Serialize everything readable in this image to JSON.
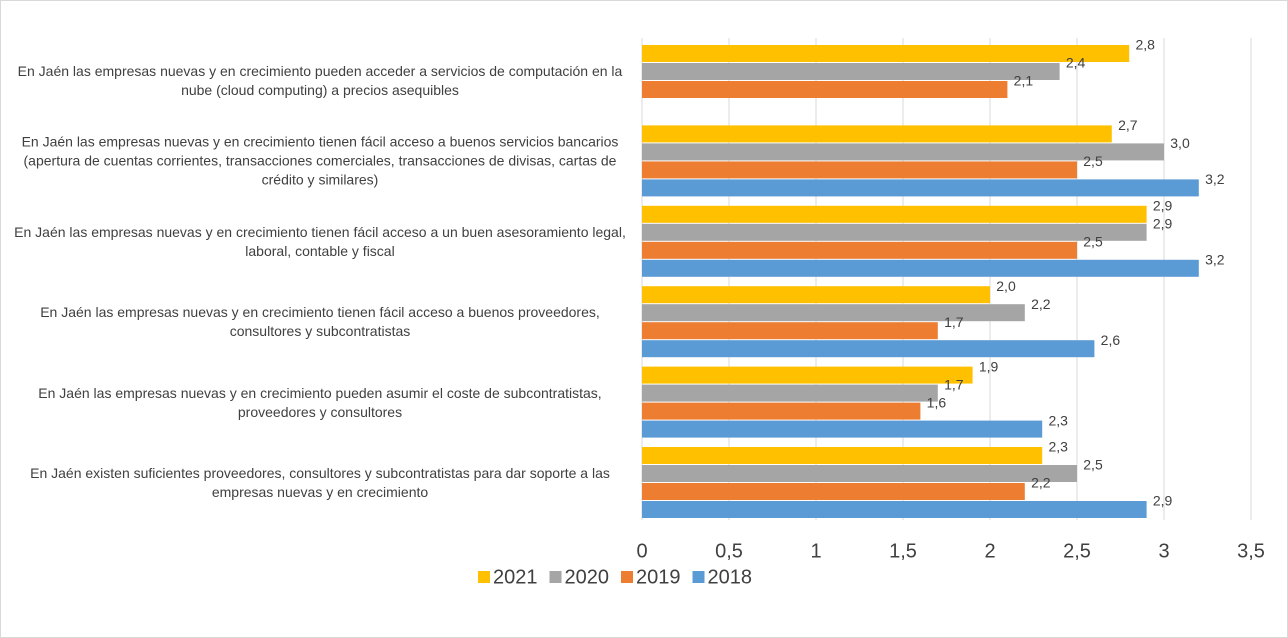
{
  "chart_data": {
    "type": "barh",
    "categories": [
      "En Jaén las empresas nuevas y en crecimiento pueden acceder a servicios de computación en la nube (cloud computing) a precios asequibles",
      "En Jaén las empresas nuevas y en crecimiento tienen fácil acceso a buenos servicios bancarios (apertura de cuentas corrientes, transacciones comerciales, transacciones de divisas, cartas de crédito y similares)",
      "En Jaén las empresas nuevas y en crecimiento tienen fácil acceso a un buen asesoramiento legal, laboral, contable y fiscal",
      "En Jaén las empresas nuevas y en crecimiento tienen fácil acceso a buenos proveedores, consultores y subcontratistas",
      "En Jaén las empresas nuevas y en crecimiento pueden asumir el coste de subcontratistas, proveedores y consultores",
      "En Jaén existen suficientes proveedores, consultores y subcontratistas para dar soporte a las empresas nuevas y en crecimiento"
    ],
    "series": [
      {
        "name": "2021",
        "color": "#ffc000",
        "values": [
          2.8,
          2.7,
          2.9,
          2.0,
          1.9,
          2.3
        ],
        "value_labels": [
          "2,8",
          "2,7",
          "2,9",
          "2,0",
          "1,9",
          "2,3"
        ]
      },
      {
        "name": "2020",
        "color": "#a5a5a5",
        "values": [
          2.4,
          3.0,
          2.9,
          2.2,
          1.7,
          2.5
        ],
        "value_labels": [
          "2,4",
          "3,0",
          "2,9",
          "2,2",
          "1,7",
          "2,5"
        ]
      },
      {
        "name": "2019",
        "color": "#ed7d31",
        "values": [
          2.1,
          2.5,
          2.5,
          1.7,
          1.6,
          2.2
        ],
        "value_labels": [
          "2,1",
          "2,5",
          "2,5",
          "1,7",
          "1,6",
          "2,2"
        ]
      },
      {
        "name": "2018",
        "color": "#5b9bd5",
        "values": [
          null,
          3.2,
          3.2,
          2.6,
          2.3,
          2.9
        ],
        "value_labels": [
          null,
          "3,2",
          "3,2",
          "2,6",
          "2,3",
          "2,9"
        ]
      }
    ],
    "xlim": [
      0,
      3.5
    ],
    "xticks": [
      0,
      {
        "value": 0.5,
        "label": "0,5"
      },
      1,
      {
        "value": 1.5,
        "label": "1,5"
      },
      2,
      {
        "value": 2.5,
        "label": "2,5"
      },
      3,
      {
        "value": 3.5,
        "label": "3,5"
      }
    ],
    "grid": true,
    "legend": "bottom"
  }
}
